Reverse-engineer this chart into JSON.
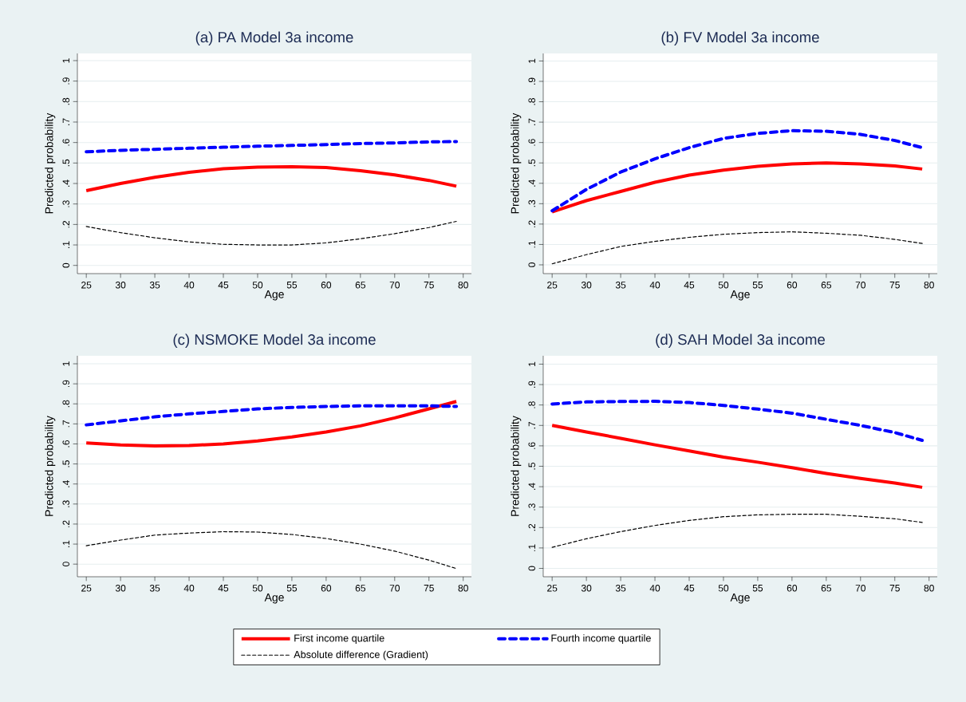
{
  "chart_data": [
    {
      "type": "line",
      "title": "(a) PA Model 3a income",
      "xlabel": "Age",
      "ylabel": "Predicted probability",
      "grid": "y",
      "legend": false,
      "x": [
        25,
        30,
        35,
        40,
        45,
        50,
        55,
        60,
        65,
        70,
        75,
        79
      ],
      "xlim": [
        23.7,
        81.2
      ],
      "ylim": [
        -0.04,
        1.035
      ],
      "xticks": [
        25,
        30,
        35,
        40,
        45,
        50,
        55,
        60,
        65,
        70,
        75,
        80
      ],
      "yticks": [
        0,
        {
          "value": 0.1,
          "label": ".1"
        },
        {
          "value": 0.2,
          "label": ".2"
        },
        {
          "value": 0.3,
          "label": ".3"
        },
        {
          "value": 0.4,
          "label": ".4"
        },
        {
          "value": 0.5,
          "label": ".5"
        },
        {
          "value": 0.6,
          "label": ".6"
        },
        {
          "value": 0.7,
          "label": ".7"
        },
        {
          "value": 0.8,
          "label": ".8"
        },
        {
          "value": 0.9,
          "label": ".9"
        },
        1
      ],
      "series": [
        {
          "color": "#ff0000",
          "line_style": "solid",
          "values": [
            0.365,
            0.4,
            0.43,
            0.455,
            0.472,
            0.48,
            0.482,
            0.478,
            0.462,
            0.442,
            0.415,
            0.387
          ]
        },
        {
          "color": "#0000ff",
          "line_style": "dashed",
          "values": [
            0.555,
            0.562,
            0.567,
            0.572,
            0.577,
            0.582,
            0.586,
            0.59,
            0.595,
            0.598,
            0.603,
            0.605
          ]
        },
        {
          "color": "#000000",
          "line_style": "dashed",
          "values": [
            0.19,
            0.16,
            0.135,
            0.115,
            0.103,
            0.1,
            0.1,
            0.11,
            0.13,
            0.155,
            0.185,
            0.215
          ]
        }
      ]
    },
    {
      "type": "line",
      "title": "(b) FV Model 3a income",
      "xlabel": "Age",
      "ylabel": "Predicted probability",
      "grid": "y",
      "legend": false,
      "x": [
        25,
        30,
        35,
        40,
        45,
        50,
        55,
        60,
        65,
        70,
        75,
        79
      ],
      "xlim": [
        23.7,
        81.2
      ],
      "ylim": [
        -0.043,
        1.037
      ],
      "xticks": [
        25,
        30,
        35,
        40,
        45,
        50,
        55,
        60,
        65,
        70,
        75,
        80
      ],
      "yticks": [
        0,
        {
          "value": 0.1,
          "label": ".1"
        },
        {
          "value": 0.2,
          "label": ".2"
        },
        {
          "value": 0.3,
          "label": ".3"
        },
        {
          "value": 0.4,
          "label": ".4"
        },
        {
          "value": 0.5,
          "label": ".5"
        },
        {
          "value": 0.6,
          "label": ".6"
        },
        {
          "value": 0.7,
          "label": ".7"
        },
        {
          "value": 0.8,
          "label": ".8"
        },
        {
          "value": 0.9,
          "label": ".9"
        },
        1
      ],
      "series": [
        {
          "color": "#ff0000",
          "line_style": "solid",
          "values": [
            0.26,
            0.315,
            0.36,
            0.405,
            0.44,
            0.465,
            0.483,
            0.495,
            0.5,
            0.495,
            0.485,
            0.47
          ]
        },
        {
          "color": "#0000ff",
          "line_style": "dashed",
          "values": [
            0.265,
            0.37,
            0.455,
            0.52,
            0.575,
            0.62,
            0.645,
            0.658,
            0.655,
            0.64,
            0.61,
            0.575
          ]
        },
        {
          "color": "#000000",
          "line_style": "dashed",
          "values": [
            0.005,
            0.05,
            0.09,
            0.115,
            0.135,
            0.15,
            0.158,
            0.162,
            0.155,
            0.145,
            0.125,
            0.105
          ]
        }
      ]
    },
    {
      "type": "line",
      "title": "(c) NSMOKE Model 3a income",
      "xlabel": "Age",
      "ylabel": "Predicted probability",
      "grid": "y",
      "legend": false,
      "x": [
        25,
        30,
        35,
        40,
        45,
        50,
        55,
        60,
        65,
        70,
        75,
        79
      ],
      "xlim": [
        23.7,
        81.2
      ],
      "ylim": [
        -0.063,
        1.04
      ],
      "xticks": [
        25,
        30,
        35,
        40,
        45,
        50,
        55,
        60,
        65,
        70,
        75,
        80
      ],
      "yticks": [
        0,
        {
          "value": 0.1,
          "label": ".1"
        },
        {
          "value": 0.2,
          "label": ".2"
        },
        {
          "value": 0.3,
          "label": ".3"
        },
        {
          "value": 0.4,
          "label": ".4"
        },
        {
          "value": 0.5,
          "label": ".5"
        },
        {
          "value": 0.6,
          "label": ".6"
        },
        {
          "value": 0.7,
          "label": ".7"
        },
        {
          "value": 0.8,
          "label": ".8"
        },
        {
          "value": 0.9,
          "label": ".9"
        },
        1
      ],
      "series": [
        {
          "color": "#ff0000",
          "line_style": "solid",
          "values": [
            0.605,
            0.595,
            0.59,
            0.592,
            0.6,
            0.615,
            0.635,
            0.66,
            0.69,
            0.73,
            0.775,
            0.812
          ]
        },
        {
          "color": "#0000ff",
          "line_style": "dashed",
          "values": [
            0.695,
            0.715,
            0.735,
            0.75,
            0.762,
            0.775,
            0.782,
            0.787,
            0.79,
            0.79,
            0.79,
            0.787
          ]
        },
        {
          "color": "#000000",
          "line_style": "dashed",
          "values": [
            0.092,
            0.12,
            0.145,
            0.155,
            0.162,
            0.16,
            0.148,
            0.128,
            0.1,
            0.065,
            0.02,
            -0.022
          ]
        }
      ]
    },
    {
      "type": "line",
      "title": "(d) SAH Model 3a income",
      "xlabel": "Age",
      "ylabel": "Predicted probability",
      "grid": "y",
      "legend": "bottom",
      "x": [
        25,
        30,
        35,
        40,
        45,
        50,
        55,
        60,
        65,
        70,
        75,
        79
      ],
      "xlim": [
        23.7,
        81.2
      ],
      "ylim": [
        -0.041,
        1.041
      ],
      "xticks": [
        25,
        30,
        35,
        40,
        45,
        50,
        55,
        60,
        65,
        70,
        75,
        80
      ],
      "yticks": [
        0,
        {
          "value": 0.1,
          "label": ".1"
        },
        {
          "value": 0.2,
          "label": ".2"
        },
        {
          "value": 0.3,
          "label": ".3"
        },
        {
          "value": 0.4,
          "label": ".4"
        },
        {
          "value": 0.5,
          "label": ".5"
        },
        {
          "value": 0.6,
          "label": ".6"
        },
        {
          "value": 0.7,
          "label": ".7"
        },
        {
          "value": 0.8,
          "label": ".8"
        },
        {
          "value": 0.9,
          "label": ".9"
        },
        1
      ],
      "series": [
        {
          "name": "First income quartile",
          "color": "#ff0000",
          "line_style": "solid",
          "values": [
            0.7,
            0.668,
            0.637,
            0.605,
            0.575,
            0.545,
            0.52,
            0.493,
            0.465,
            0.44,
            0.418,
            0.397
          ]
        },
        {
          "name": "Fourth income quartile",
          "color": "#0000ff",
          "line_style": "dashed",
          "values": [
            0.805,
            0.815,
            0.817,
            0.818,
            0.812,
            0.798,
            0.78,
            0.76,
            0.73,
            0.7,
            0.665,
            0.627
          ]
        },
        {
          "name": "Absolute difference (Gradient)",
          "color": "#000000",
          "line_style": "dashed",
          "values": [
            0.103,
            0.145,
            0.18,
            0.21,
            0.235,
            0.253,
            0.262,
            0.265,
            0.265,
            0.255,
            0.243,
            0.225
          ]
        }
      ]
    }
  ]
}
